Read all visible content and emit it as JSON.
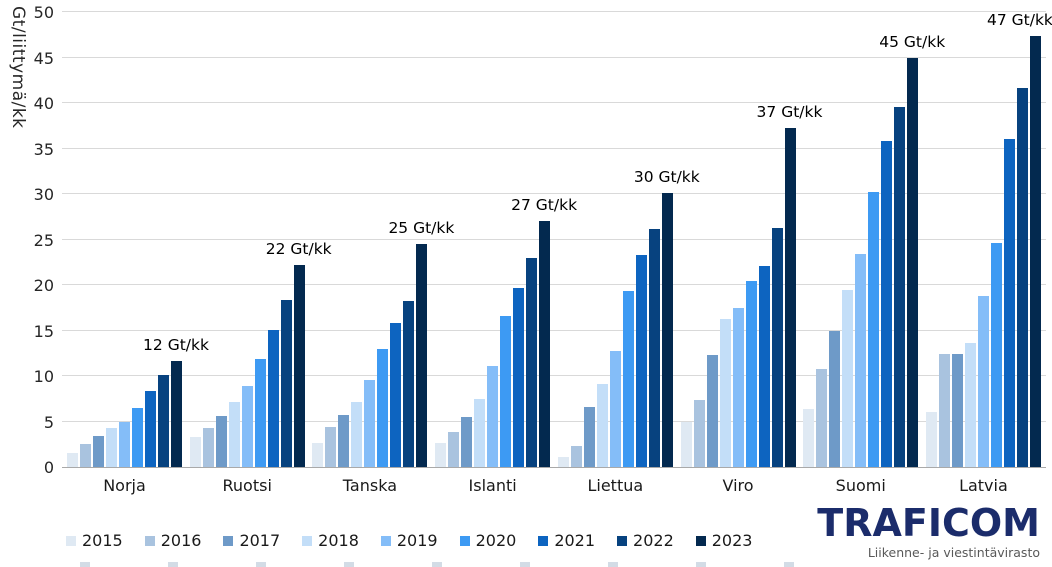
{
  "chart_data": {
    "type": "bar",
    "title": "",
    "ylabel": "Gt/liittymä/kk",
    "xlabel": "",
    "ylim": [
      0,
      50
    ],
    "ytick_step": 5,
    "grid": "horizontal",
    "legend_position": "bottom",
    "categories": [
      "Norja",
      "Ruotsi",
      "Tanska",
      "Islanti",
      "Liettua",
      "Viro",
      "Suomi",
      "Latvia"
    ],
    "series": [
      {
        "name": "2015",
        "color": "#dfe9f3",
        "values": [
          1.5,
          3.3,
          2.6,
          2.6,
          1.1,
          4.9,
          6.4,
          6.1
        ]
      },
      {
        "name": "2016",
        "color": "#a9c3df",
        "values": [
          2.5,
          4.3,
          4.4,
          3.9,
          2.3,
          7.4,
          10.8,
          12.4
        ]
      },
      {
        "name": "2017",
        "color": "#6e9ac8",
        "values": [
          3.4,
          5.6,
          5.7,
          5.5,
          6.6,
          12.3,
          15.0,
          12.4
        ]
      },
      {
        "name": "2018",
        "color": "#c3def8",
        "values": [
          4.3,
          7.1,
          7.1,
          7.5,
          9.1,
          16.3,
          19.5,
          13.6
        ]
      },
      {
        "name": "2019",
        "color": "#84bdf8",
        "values": [
          5.0,
          8.9,
          9.6,
          11.1,
          12.8,
          17.5,
          23.4,
          18.8
        ]
      },
      {
        "name": "2020",
        "color": "#3d9af3",
        "values": [
          6.5,
          11.9,
          13.0,
          16.6,
          19.3,
          20.4,
          30.2,
          24.6
        ]
      },
      {
        "name": "2021",
        "color": "#0d64c0",
        "values": [
          8.4,
          15.1,
          15.8,
          19.7,
          23.3,
          22.1,
          35.8,
          36.0
        ]
      },
      {
        "name": "2022",
        "color": "#07427f",
        "values": [
          10.1,
          18.4,
          18.2,
          23.0,
          26.2,
          26.3,
          39.6,
          41.6
        ]
      },
      {
        "name": "2023",
        "color": "#03294f",
        "values": [
          11.7,
          22.2,
          24.5,
          27.0,
          30.1,
          37.2,
          45.0,
          47.4
        ]
      }
    ],
    "annotations": [
      "12 Gt/kk",
      "22 Gt/kk",
      "25 Gt/kk",
      "27 Gt/kk",
      "30 Gt/kk",
      "37 Gt/kk",
      "45 Gt/kk",
      "47 Gt/kk"
    ]
  },
  "legend": {
    "years": [
      "2015",
      "2016",
      "2017",
      "2018",
      "2019",
      "2020",
      "2021",
      "2022",
      "2023"
    ]
  },
  "logo": {
    "brand": "TRAFICOM",
    "tagline": "Liikenne- ja viestintävirasto"
  }
}
